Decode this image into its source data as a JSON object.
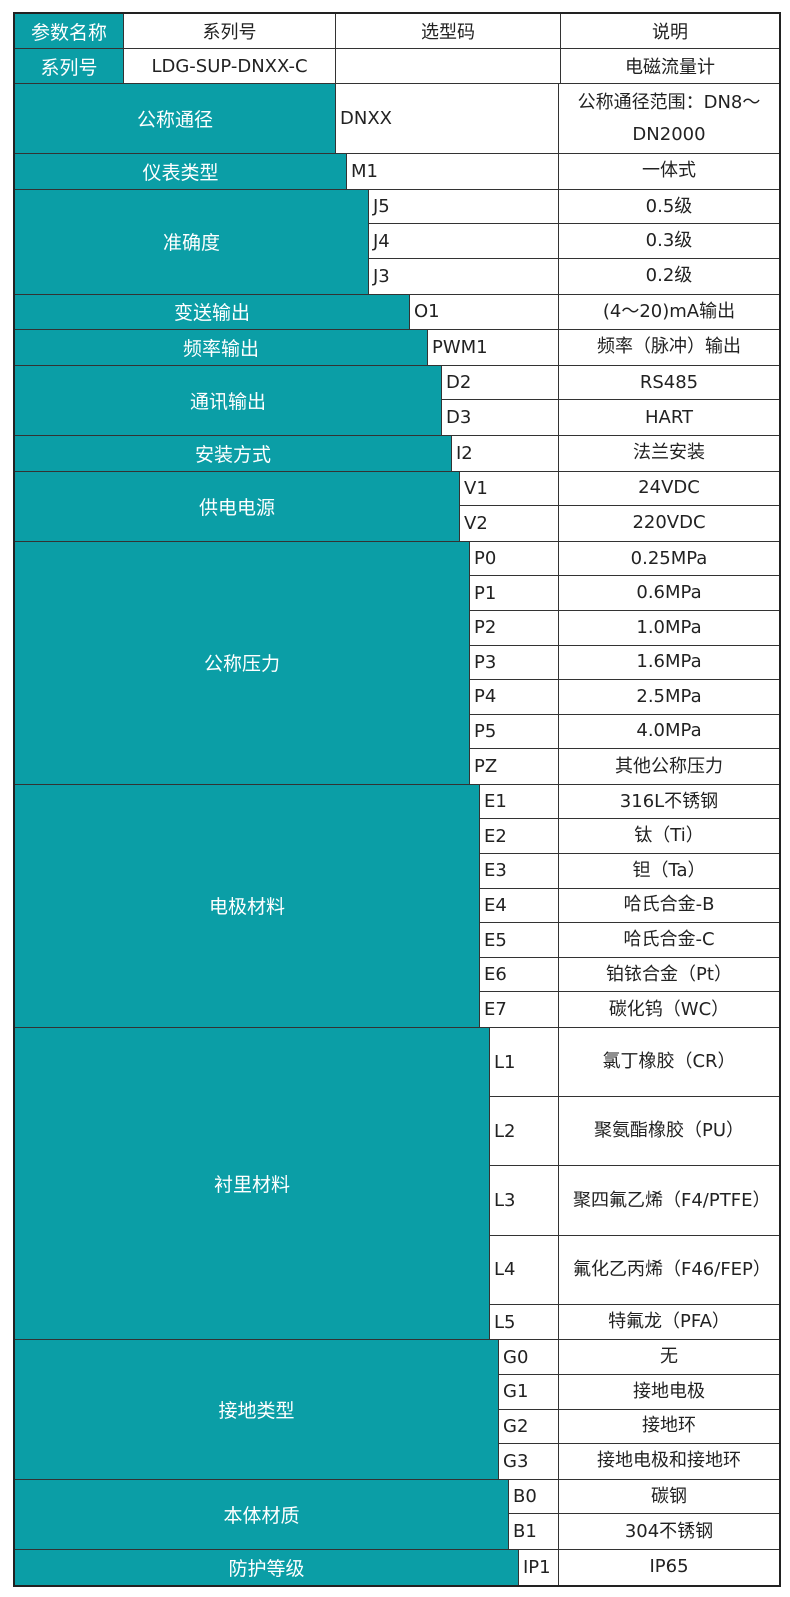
{
  "header": {
    "param": "参数名称",
    "series": "系列号",
    "code": "选型码",
    "desc": "说明"
  },
  "series_row": {
    "label": "系列号",
    "value": "LDG-SUP-DNXX-C",
    "code": "",
    "desc": "电磁流量计"
  },
  "groups": [
    {
      "label": "公称通径",
      "items": [
        {
          "code": "DNXX",
          "desc": "公称通径范围：DN8～DN2000",
          "span": 2
        }
      ]
    },
    {
      "label": "仪表类型",
      "items": [
        {
          "code": "M1",
          "desc": "一体式"
        }
      ]
    },
    {
      "label": "准确度",
      "items": [
        {
          "code": "J5",
          "desc": "0.5级"
        },
        {
          "code": "J4",
          "desc": "0.3级"
        },
        {
          "code": "J3",
          "desc": "0.2级"
        }
      ]
    },
    {
      "label": "变送输出",
      "items": [
        {
          "code": "O1",
          "desc": "(4～20)mA输出"
        }
      ]
    },
    {
      "label": "频率输出",
      "items": [
        {
          "code": "PWM1",
          "desc": "频率（脉冲）输出"
        }
      ]
    },
    {
      "label": "通讯输出",
      "items": [
        {
          "code": "D2",
          "desc": "RS485"
        },
        {
          "code": "D3",
          "desc": "HART"
        }
      ]
    },
    {
      "label": "安装方式",
      "items": [
        {
          "code": "I2",
          "desc": "法兰安装"
        }
      ]
    },
    {
      "label": "供电电源",
      "items": [
        {
          "code": "V1",
          "desc": "24VDC"
        },
        {
          "code": "V2",
          "desc": "220VDC"
        }
      ]
    },
    {
      "label": "公称压力",
      "items": [
        {
          "code": "P0",
          "desc": "0.25MPa"
        },
        {
          "code": "P1",
          "desc": "0.6MPa"
        },
        {
          "code": "P2",
          "desc": "1.0MPa"
        },
        {
          "code": "P3",
          "desc": "1.6MPa"
        },
        {
          "code": "P4",
          "desc": "2.5MPa"
        },
        {
          "code": "P5",
          "desc": "4.0MPa"
        },
        {
          "code": "PZ",
          "desc": "其他公称压力"
        }
      ]
    },
    {
      "label": "电极材料",
      "items": [
        {
          "code": "E1",
          "desc": "316L不锈钢"
        },
        {
          "code": "E2",
          "desc": "钛（Ti）"
        },
        {
          "code": "E3",
          "desc": "钽（Ta）"
        },
        {
          "code": "E4",
          "desc": "哈氏合金-B"
        },
        {
          "code": "E5",
          "desc": "哈氏合金-C"
        },
        {
          "code": "E6",
          "desc": "铂铱合金（Pt）"
        },
        {
          "code": "E7",
          "desc": "碳化钨（WC）"
        }
      ]
    },
    {
      "label": "衬里材料",
      "items": [
        {
          "code": "L1",
          "desc": "氯丁橡胶（CR）",
          "span": 2
        },
        {
          "code": "L2",
          "desc": "聚氨酯橡胶（PU）",
          "span": 2
        },
        {
          "code": "L3",
          "desc": "聚四氟乙烯（F4/PTFE）",
          "span": 2
        },
        {
          "code": "L4",
          "desc": "氟化乙丙烯（F46/FEP）",
          "span": 2
        },
        {
          "code": "L5",
          "desc": "特氟龙（PFA）"
        }
      ]
    },
    {
      "label": "接地类型",
      "items": [
        {
          "code": "G0",
          "desc": "无"
        },
        {
          "code": "G1",
          "desc": "接地电极"
        },
        {
          "code": "G2",
          "desc": "接地环"
        },
        {
          "code": "G3",
          "desc": "接地电极和接地环"
        }
      ]
    },
    {
      "label": "本体材质",
      "items": [
        {
          "code": "B0",
          "desc": "碳钢"
        },
        {
          "code": "B1",
          "desc": "304不锈钢"
        }
      ]
    },
    {
      "label": "防护等级",
      "items": [
        {
          "code": "IP1",
          "desc": "IP65"
        }
      ]
    }
  ],
  "colors": {
    "teal": "#0b9ea6",
    "border": "#222222"
  }
}
